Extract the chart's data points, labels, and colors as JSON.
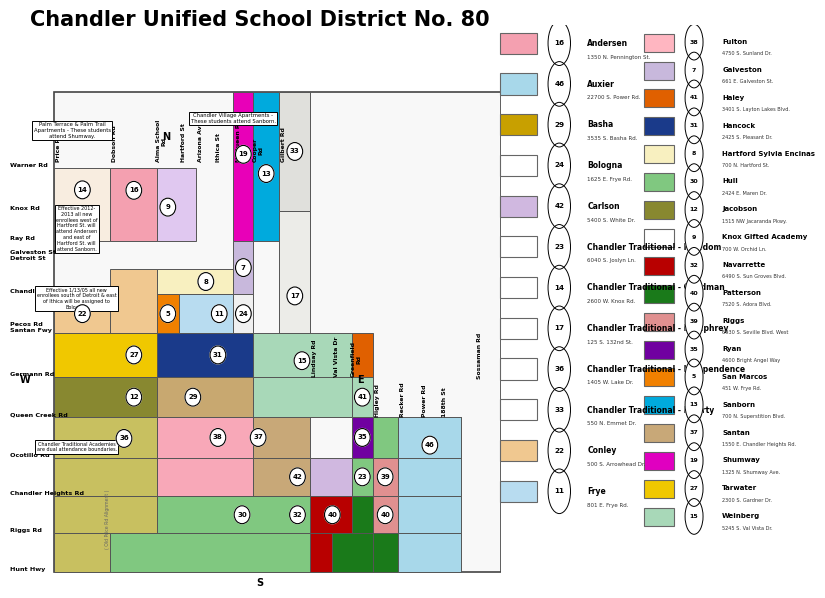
{
  "title": "Chandler Unified School District No. 80",
  "title_fontsize": 15,
  "legend_col1": [
    {
      "num": "16",
      "name": "Andersen",
      "addr": "1350 N. Pennington St.",
      "color": "#F4A0B0"
    },
    {
      "num": "46",
      "name": "Auxier",
      "addr": "22700 S. Power Rd.",
      "color": "#A8D8EA"
    },
    {
      "num": "29",
      "name": "Basha",
      "addr": "3535 S. Basha Rd.",
      "color": "#C8A000"
    },
    {
      "num": "24",
      "name": "Bologna",
      "addr": "1625 E. Frye Rd.",
      "color": "#FFFFFF"
    },
    {
      "num": "42",
      "name": "Carlson",
      "addr": "5400 S. White Dr.",
      "color": "#D0B8E0"
    },
    {
      "num": "23",
      "name": "Chandler Traditional - Freedom",
      "addr": "6040 S. Joslyn Ln.",
      "color": "#FFFFFF"
    },
    {
      "num": "14",
      "name": "Chandler Traditional - Goodman",
      "addr": "2600 W. Knox Rd.",
      "color": "#FFFFFF"
    },
    {
      "num": "17",
      "name": "Chandler Traditional - Humphrey",
      "addr": "125 S. 132nd St.",
      "color": "#FFFFFF"
    },
    {
      "num": "36",
      "name": "Chandler Traditional - Independence",
      "addr": "1405 W. Lake Dr.",
      "color": "#FFFFFF"
    },
    {
      "num": "33",
      "name": "Chandler Traditional - Liberty",
      "addr": "550 N. Emmet Dr.",
      "color": "#FFFFFF"
    },
    {
      "num": "22",
      "name": "Conley",
      "addr": "500 S. Arrowhead Dr.",
      "color": "#F0C890"
    },
    {
      "num": "11",
      "name": "Frye",
      "addr": "801 E. Frye Rd.",
      "color": "#B8DCF0"
    }
  ],
  "legend_col2": [
    {
      "num": "38",
      "name": "Fulton",
      "addr": "4750 S. Sunland Dr.",
      "color": "#FFB6C1"
    },
    {
      "num": "7",
      "name": "Galveston",
      "addr": "661 E. Galveston St.",
      "color": "#C8B8DC"
    },
    {
      "num": "41",
      "name": "Haley",
      "addr": "3401 S. Layton Lakes Blvd.",
      "color": "#E06000"
    },
    {
      "num": "31",
      "name": "Hancock",
      "addr": "2425 S. Pleasant Dr.",
      "color": "#1A3A8A"
    },
    {
      "num": "8",
      "name": "Hartford Sylvia Encinas",
      "addr": "700 N. Hartford St.",
      "color": "#F8F0C0"
    },
    {
      "num": "30",
      "name": "Hull",
      "addr": "2424 E. Maren Dr.",
      "color": "#80C880"
    },
    {
      "num": "12",
      "name": "Jacobson",
      "addr": "1515 NW Jacaranda Pkwy.",
      "color": "#888830"
    },
    {
      "num": "9",
      "name": "Knox Gifted Academy",
      "addr": "700 W. Orchid Ln.",
      "color": "#FFFFFF"
    },
    {
      "num": "32",
      "name": "Navarrette",
      "addr": "6490 S. Sun Groves Blvd.",
      "color": "#B80000"
    },
    {
      "num": "40",
      "name": "Patterson",
      "addr": "7520 S. Adora Blvd.",
      "color": "#1A7A1A"
    },
    {
      "num": "39",
      "name": "Riggs",
      "addr": "6930 S. Seville Blvd. West",
      "color": "#E09090"
    },
    {
      "num": "35",
      "name": "Ryan",
      "addr": "4600 Bright Angel Way",
      "color": "#7000A0"
    },
    {
      "num": "5",
      "name": "San Marcos",
      "addr": "451 W. Frye Rd.",
      "color": "#F08000"
    },
    {
      "num": "13",
      "name": "Sanborn",
      "addr": "700 N. Superstition Blvd.",
      "color": "#00AADD"
    },
    {
      "num": "37",
      "name": "Santan",
      "addr": "1550 E. Chandler Heights Rd.",
      "color": "#C8A878"
    },
    {
      "num": "19",
      "name": "Shumway",
      "addr": "1325 N. Shumway Ave.",
      "color": "#E000C0"
    },
    {
      "num": "27",
      "name": "Tarwater",
      "addr": "2300 S. Gardner Dr.",
      "color": "#F0C800"
    },
    {
      "num": "15",
      "name": "Weinberg",
      "addr": "5245 S. Val Vista Dr.",
      "color": "#A8D8B8"
    }
  ]
}
